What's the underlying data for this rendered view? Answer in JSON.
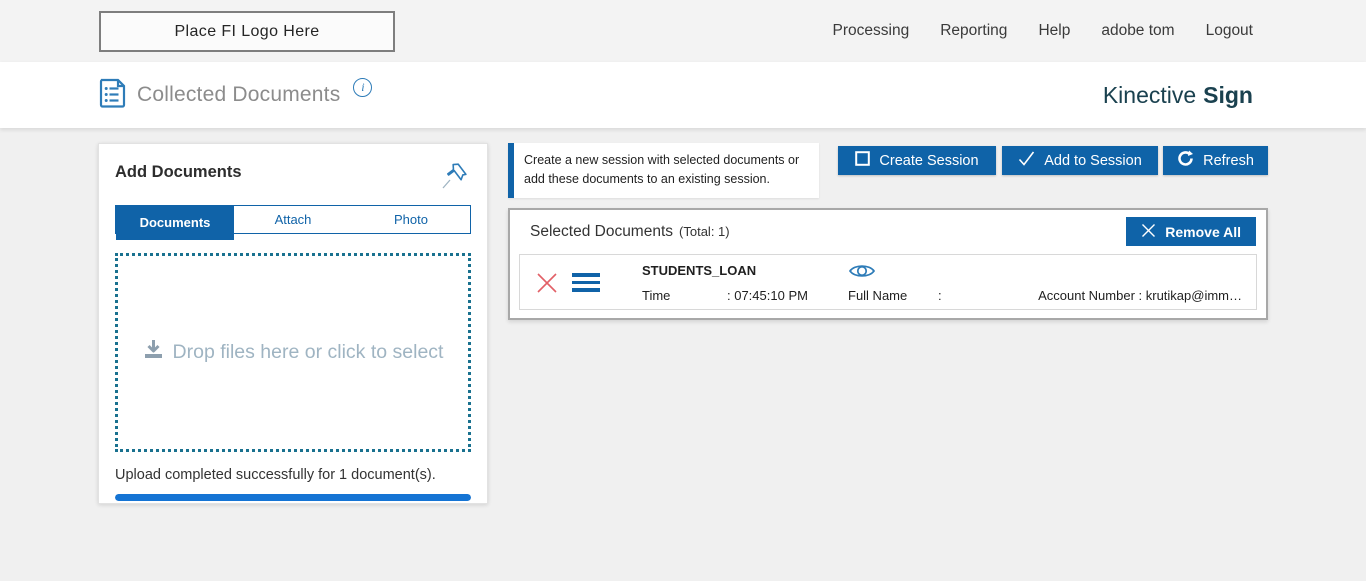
{
  "topbar": {
    "logo_text": "Place FI Logo Here",
    "nav": [
      {
        "label": "Processing"
      },
      {
        "label": "Reporting"
      },
      {
        "label": "Help"
      },
      {
        "label": "adobe tom"
      },
      {
        "label": "Logout"
      }
    ]
  },
  "header": {
    "title": "Collected Documents",
    "info_glyph": "i",
    "brand_regular": "Kinective",
    "brand_bold": "Sign"
  },
  "add_documents": {
    "title": "Add Documents",
    "tabs": [
      {
        "label": "Documents",
        "active": true
      },
      {
        "label": "Attach",
        "active": false
      },
      {
        "label": "Photo",
        "active": false
      }
    ],
    "dropzone_text": "Drop files here or click to select",
    "status_text": "Upload completed successfully for 1 document(s).",
    "progress_percent": 100
  },
  "session": {
    "info_message": "Create a new session with selected documents or add these documents to an existing session.",
    "create_label": "Create Session",
    "add_label": "Add to Session",
    "refresh_label": "Refresh"
  },
  "selected_documents": {
    "title": "Selected Documents",
    "total_text": "(Total: 1)",
    "remove_all_label": "Remove All",
    "rows": [
      {
        "name": "STUDENTS_LOAN",
        "time_label": "Time",
        "time_value": ": 07:45:10 PM",
        "fullname_label": "Full Name",
        "fullname_value": ":",
        "account_text": "Account Number : krutikap@imm…"
      }
    ]
  },
  "colors": {
    "accent_blue": "#0f63a8",
    "progress_blue": "#1574d4",
    "dropzone_teal": "#19718f",
    "brand_teal": "#1a414f",
    "remove_red": "#e26067"
  }
}
